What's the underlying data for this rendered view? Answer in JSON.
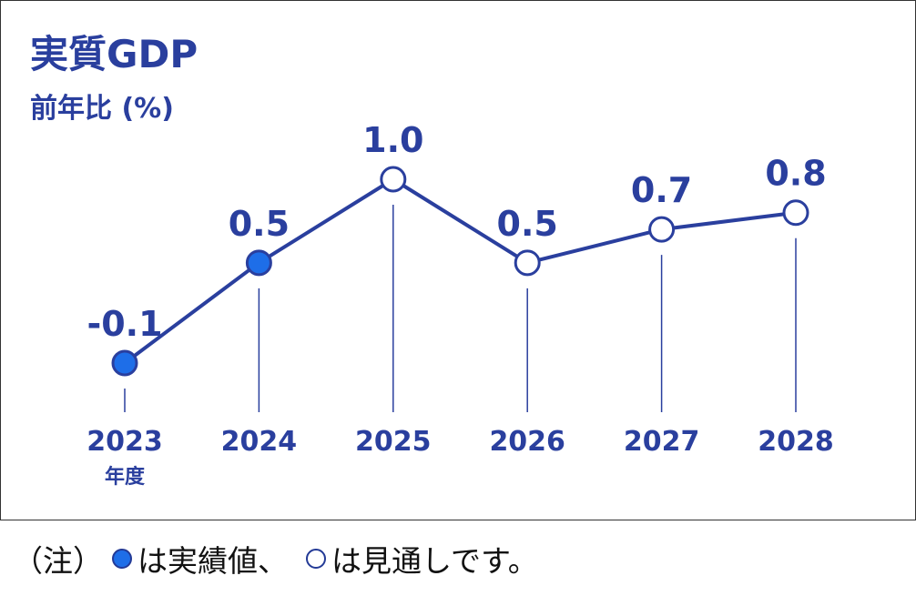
{
  "chart_data": {
    "type": "line",
    "title": "実質GDP",
    "ylabel": "前年比 (%)",
    "categories": [
      "2023",
      "2024",
      "2025",
      "2026",
      "2027",
      "2028"
    ],
    "x_unit_label": "年度",
    "series": [
      {
        "values": [
          -0.1,
          0.5,
          1.0,
          0.5,
          0.7,
          0.8
        ],
        "point_types": [
          "actual",
          "actual",
          "forecast",
          "forecast",
          "forecast",
          "forecast"
        ]
      }
    ],
    "data_labels": [
      "-0.1",
      "0.5",
      "1.0",
      "0.5",
      "0.7",
      "0.8"
    ],
    "ylim": [
      -0.1,
      1.0
    ],
    "grid": false,
    "colors": {
      "line": "#2a3f9e",
      "actual_fill": "#1e6ee8",
      "forecast_fill": "#ffffff",
      "text": "#2a3f9e"
    }
  },
  "note": {
    "prefix": "（注）",
    "actual_text": "は実績値、",
    "forecast_text": "は見通しです。"
  }
}
